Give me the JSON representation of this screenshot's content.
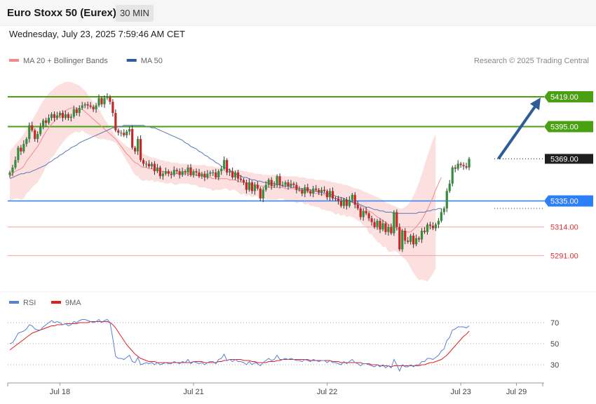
{
  "header": {
    "title": "Euro Stoxx 50 (Eurex)",
    "interval": "30 MIN",
    "timestamp": "Wednesday, July 23, 2025 7:59:46 AM CET"
  },
  "legend": {
    "main": [
      {
        "label": "MA 20 + Bollinger Bands",
        "color": "#f4888a"
      },
      {
        "label": "MA 50",
        "color": "#2e5b9a"
      }
    ],
    "rsi": [
      {
        "label": "RSI",
        "color": "#5b7fd6"
      },
      {
        "label": "9MA",
        "color": "#e02020"
      }
    ],
    "credit": "Research © 2025 Trading Central"
  },
  "chart_data": [
    {
      "type": "candlestick",
      "ylim": [
        5268,
        5436
      ],
      "levels": [
        {
          "value": 5419.0,
          "label": "5419.00",
          "kind": "resistance",
          "color": "#4aa013"
        },
        {
          "value": 5395.0,
          "label": "5395.00",
          "kind": "resistance",
          "color": "#4aa013"
        },
        {
          "value": 5369.0,
          "label": "5369.00",
          "kind": "last",
          "color": "#1f1f1f"
        },
        {
          "value": 5335.0,
          "label": "5335.00",
          "kind": "pivot",
          "color": "#2d7ff9"
        },
        {
          "value": 5314.0,
          "label": "5314.00",
          "kind": "support",
          "color": "#e53030"
        },
        {
          "value": 5291.0,
          "label": "5291.00",
          "kind": "support",
          "color": "#e53030"
        }
      ],
      "x_ticks": [
        {
          "index": 18,
          "label": "Jul 18"
        },
        {
          "index": 66,
          "label": "Jul 21"
        },
        {
          "index": 114,
          "label": "Jul 22"
        },
        {
          "index": 162,
          "label": "Jul 23"
        },
        {
          "index": 182,
          "label": "Jul 29"
        }
      ],
      "forecast_arrow": {
        "from_index": 175,
        "from_value": 5369,
        "to_index": 190,
        "to_value": 5419
      },
      "candle_closes": [
        5358,
        5362,
        5368,
        5378,
        5375,
        5381,
        5385,
        5396,
        5392,
        5385,
        5389,
        5395,
        5400,
        5398,
        5402,
        5405,
        5402,
        5404,
        5406,
        5402,
        5405,
        5402,
        5403,
        5409,
        5406,
        5410,
        5412,
        5413,
        5412,
        5411,
        5409,
        5412,
        5418,
        5413,
        5418,
        5419,
        5415,
        5406,
        5392,
        5390,
        5390,
        5388,
        5391,
        5393,
        5378,
        5375,
        5385,
        5368,
        5365,
        5365,
        5363,
        5365,
        5359,
        5362,
        5355,
        5357,
        5359,
        5357,
        5356,
        5360,
        5359,
        5356,
        5359,
        5358,
        5362,
        5356,
        5359,
        5358,
        5355,
        5357,
        5354,
        5357,
        5358,
        5358,
        5354,
        5359,
        5361,
        5368,
        5358,
        5359,
        5354,
        5358,
        5353,
        5352,
        5350,
        5344,
        5350,
        5343,
        5348,
        5345,
        5337,
        5344,
        5348,
        5352,
        5347,
        5348,
        5355,
        5348,
        5348,
        5350,
        5347,
        5349,
        5348,
        5344,
        5344,
        5341,
        5346,
        5343,
        5341,
        5345,
        5344,
        5342,
        5344,
        5343,
        5338,
        5343,
        5337,
        5337,
        5335,
        5331,
        5336,
        5331,
        5336,
        5340,
        5332,
        5329,
        5322,
        5327,
        5325,
        5321,
        5318,
        5314,
        5319,
        5312,
        5317,
        5310,
        5314,
        5309,
        5326,
        5314,
        5296,
        5311,
        5303,
        5302,
        5307,
        5300,
        5305,
        5304,
        5311,
        5310,
        5316,
        5315,
        5313,
        5316,
        5319,
        5326,
        5329,
        5343,
        5349,
        5362,
        5361,
        5365,
        5364,
        5363,
        5362,
        5369
      ],
      "ma20": [
        5355,
        5357,
        5359,
        5360,
        5361,
        5363,
        5367,
        5370,
        5373,
        5376,
        5379,
        5383,
        5387,
        5391,
        5394,
        5397,
        5399,
        5402,
        5404,
        5406,
        5408,
        5409,
        5410,
        5410,
        5410,
        5409,
        5409,
        5407,
        5405,
        5403,
        5401,
        5399,
        5397,
        5395,
        5393,
        5391,
        5389,
        5387,
        5385,
        5382,
        5379,
        5376,
        5373,
        5371,
        5368,
        5366,
        5365,
        5363,
        5362,
        5362,
        5361,
        5361,
        5360,
        5360,
        5359,
        5359,
        5358,
        5358,
        5358,
        5357,
        5357,
        5357,
        5357,
        5357,
        5357,
        5356,
        5356,
        5356,
        5355,
        5355,
        5355,
        5354,
        5354,
        5353,
        5353,
        5353,
        5353,
        5353,
        5353,
        5352,
        5352,
        5352,
        5351,
        5350,
        5350,
        5349,
        5349,
        5348,
        5348,
        5348,
        5347,
        5347,
        5346,
        5346,
        5346,
        5346,
        5346,
        5346,
        5346,
        5345,
        5345,
        5345,
        5345,
        5344,
        5344,
        5344,
        5343,
        5343,
        5342,
        5342,
        5341,
        5341,
        5340,
        5340,
        5339,
        5339,
        5338,
        5337,
        5337,
        5336,
        5336,
        5335,
        5335,
        5334,
        5333,
        5332,
        5331,
        5330,
        5329,
        5327,
        5326,
        5324,
        5322,
        5321,
        5319,
        5318,
        5316,
        5315,
        5314,
        5313,
        5312,
        5311,
        5310,
        5310,
        5310,
        5312,
        5314,
        5317,
        5320,
        5324,
        5328,
        5333,
        5338,
        5344,
        5349,
        5354
      ],
      "ma50": [
        5353,
        5354,
        5355,
        5356,
        5357,
        5357,
        5358,
        5358,
        5359,
        5360,
        5361,
        5362,
        5363,
        5364,
        5366,
        5367,
        5369,
        5370,
        5372,
        5373,
        5375,
        5376,
        5378,
        5379,
        5380,
        5382,
        5383,
        5384,
        5385,
        5386,
        5387,
        5388,
        5389,
        5390,
        5391,
        5392,
        5393,
        5394,
        5394,
        5395,
        5395,
        5396,
        5396,
        5396,
        5396,
        5396,
        5396,
        5396,
        5396,
        5395,
        5395,
        5394,
        5394,
        5393,
        5392,
        5391,
        5390,
        5389,
        5388,
        5387,
        5386,
        5385,
        5384,
        5382,
        5381,
        5379,
        5378,
        5377,
        5375,
        5374,
        5372,
        5371,
        5369,
        5368,
        5366,
        5365,
        5363,
        5362,
        5361,
        5360,
        5358,
        5357,
        5356,
        5355,
        5354,
        5354,
        5353,
        5352,
        5352,
        5351,
        5351,
        5350,
        5350,
        5349,
        5349,
        5349,
        5348,
        5348,
        5347,
        5347,
        5347,
        5346,
        5346,
        5346,
        5345,
        5345,
        5344,
        5344,
        5344,
        5343,
        5343,
        5342,
        5342,
        5341,
        5341,
        5340,
        5340,
        5339,
        5338,
        5338,
        5337,
        5336,
        5335,
        5334,
        5333,
        5333,
        5332,
        5331,
        5330,
        5330,
        5329,
        5328,
        5328,
        5327,
        5327,
        5326,
        5326,
        5326,
        5325,
        5325,
        5325,
        5325,
        5325,
        5325,
        5325,
        5325,
        5325,
        5326,
        5326,
        5326,
        5327,
        5327,
        5328,
        5328,
        5329,
        5329
      ],
      "bollinger_upper": [
        5375,
        5378,
        5381,
        5383,
        5386,
        5389,
        5393,
        5397,
        5400,
        5404,
        5408,
        5412,
        5416,
        5419,
        5422,
        5424,
        5426,
        5428,
        5429,
        5430,
        5431,
        5431,
        5431,
        5430,
        5429,
        5428,
        5426,
        5424,
        5421,
        5418,
        5415,
        5412,
        5409,
        5405,
        5401,
        5398,
        5394,
        5391,
        5388,
        5385,
        5383,
        5381,
        5379,
        5378,
        5377,
        5376,
        5375,
        5374,
        5373,
        5372,
        5371,
        5370,
        5370,
        5369,
        5368,
        5368,
        5367,
        5367,
        5366,
        5366,
        5366,
        5365,
        5365,
        5365,
        5365,
        5364,
        5364,
        5364,
        5364,
        5364,
        5364,
        5363,
        5363,
        5363,
        5362,
        5362,
        5362,
        5361,
        5361,
        5361,
        5360,
        5360,
        5360,
        5360,
        5359,
        5359,
        5358,
        5358,
        5357,
        5357,
        5357,
        5356,
        5356,
        5356,
        5356,
        5356,
        5356,
        5355,
        5355,
        5355,
        5355,
        5355,
        5355,
        5355,
        5354,
        5354,
        5354,
        5353,
        5353,
        5353,
        5352,
        5352,
        5352,
        5352,
        5351,
        5351,
        5350,
        5350,
        5349,
        5349,
        5348,
        5348,
        5347,
        5346,
        5345,
        5345,
        5344,
        5343,
        5342,
        5341,
        5340,
        5339,
        5338,
        5337,
        5336,
        5334,
        5333,
        5332,
        5331,
        5330,
        5329,
        5329,
        5330,
        5332,
        5335,
        5339,
        5344,
        5350,
        5357,
        5364,
        5371,
        5378,
        5384,
        5389
      ],
      "bollinger_lower": [
        5335,
        5336,
        5337,
        5337,
        5336,
        5337,
        5341,
        5343,
        5346,
        5348,
        5350,
        5354,
        5358,
        5363,
        5366,
        5370,
        5372,
        5376,
        5379,
        5382,
        5385,
        5387,
        5389,
        5390,
        5391,
        5390,
        5392,
        5390,
        5389,
        5388,
        5387,
        5386,
        5385,
        5385,
        5385,
        5384,
        5384,
        5383,
        5382,
        5379,
        5375,
        5371,
        5367,
        5364,
        5359,
        5356,
        5355,
        5352,
        5351,
        5352,
        5351,
        5352,
        5350,
        5351,
        5350,
        5350,
        5349,
        5349,
        5350,
        5348,
        5348,
        5349,
        5349,
        5349,
        5349,
        5348,
        5348,
        5348,
        5346,
        5346,
        5346,
        5345,
        5345,
        5343,
        5344,
        5344,
        5344,
        5345,
        5345,
        5343,
        5344,
        5344,
        5342,
        5340,
        5341,
        5339,
        5340,
        5338,
        5339,
        5339,
        5337,
        5338,
        5336,
        5336,
        5336,
        5336,
        5336,
        5337,
        5337,
        5335,
        5335,
        5335,
        5335,
        5333,
        5334,
        5334,
        5332,
        5333,
        5331,
        5331,
        5330,
        5330,
        5328,
        5328,
        5327,
        5327,
        5326,
        5324,
        5325,
        5323,
        5324,
        5322,
        5323,
        5322,
        5321,
        5319,
        5318,
        5315,
        5314,
        5309,
        5308,
        5305,
        5302,
        5301,
        5298,
        5298,
        5294,
        5294,
        5295,
        5294,
        5292,
        5290,
        5288,
        5285,
        5281,
        5277,
        5274,
        5271,
        5272,
        5271,
        5270,
        5273,
        5276,
        5281,
        5286,
        5291
      ],
      "panels": "price"
    },
    {
      "type": "line",
      "ylim": [
        20,
        80
      ],
      "y_ticks": [
        70,
        50,
        30
      ],
      "series": [
        {
          "name": "RSI",
          "values": [
            50,
            51,
            55,
            60,
            61,
            62,
            64,
            68,
            67,
            64,
            63,
            63,
            66,
            68,
            70,
            72,
            70,
            71,
            70,
            68,
            69,
            67,
            68,
            71,
            70,
            72,
            73,
            73,
            72,
            71,
            70,
            71,
            73,
            70,
            72,
            73,
            70,
            55,
            38,
            36,
            36,
            35,
            37,
            39,
            33,
            32,
            37,
            30,
            31,
            32,
            31,
            32,
            30,
            32,
            30,
            31,
            32,
            31,
            31,
            33,
            32,
            31,
            33,
            32,
            35,
            31,
            33,
            32,
            31,
            32,
            30,
            32,
            33,
            33,
            31,
            35,
            36,
            40,
            34,
            35,
            33,
            35,
            33,
            33,
            32,
            30,
            33,
            30,
            32,
            31,
            29,
            32,
            34,
            36,
            34,
            35,
            39,
            35,
            35,
            36,
            35,
            36,
            35,
            34,
            34,
            33,
            35,
            34,
            33,
            35,
            34,
            33,
            34,
            34,
            32,
            34,
            32,
            32,
            31,
            30,
            33,
            31,
            33,
            35,
            32,
            31,
            29,
            31,
            31,
            30,
            29,
            28,
            30,
            28,
            30,
            27,
            29,
            27,
            35,
            30,
            24,
            30,
            28,
            28,
            30,
            28,
            30,
            30,
            33,
            33,
            36,
            36,
            35,
            37,
            39,
            43,
            45,
            53,
            56,
            63,
            64,
            66,
            66,
            66,
            65,
            67
          ]
        },
        {
          "name": "9MA",
          "values": [
            44,
            46,
            48,
            50,
            52,
            54,
            56,
            58,
            60,
            61,
            62,
            63,
            64,
            65,
            66,
            67,
            67,
            68,
            68,
            68,
            69,
            69,
            69,
            69,
            69,
            70,
            70,
            70,
            70,
            71,
            71,
            71,
            71,
            71,
            71,
            71,
            70,
            68,
            65,
            61,
            57,
            53,
            49,
            46,
            43,
            40,
            38,
            36,
            35,
            34,
            33,
            33,
            33,
            32,
            32,
            32,
            32,
            32,
            32,
            32,
            32,
            32,
            32,
            32,
            32,
            32,
            33,
            33,
            33,
            33,
            32,
            32,
            32,
            32,
            32,
            33,
            33,
            34,
            34,
            35,
            35,
            35,
            35,
            35,
            34,
            34,
            34,
            33,
            33,
            32,
            32,
            32,
            32,
            33,
            33,
            33,
            34,
            34,
            35,
            35,
            35,
            35,
            35,
            35,
            35,
            35,
            35,
            35,
            34,
            34,
            34,
            34,
            34,
            34,
            34,
            34,
            33,
            33,
            33,
            32,
            32,
            32,
            32,
            32,
            32,
            32,
            32,
            31,
            31,
            31,
            30,
            30,
            30,
            29,
            29,
            29,
            29,
            28,
            29,
            29,
            29,
            29,
            29,
            29,
            29,
            29,
            29,
            29,
            30,
            30,
            31,
            32,
            32,
            33,
            34,
            35,
            37,
            39,
            42,
            45,
            48,
            51,
            54,
            57,
            59,
            62
          ]
        }
      ],
      "panels": "rsi"
    }
  ]
}
